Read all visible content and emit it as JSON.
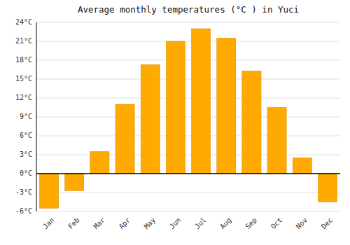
{
  "chart_data": {
    "type": "bar",
    "title": "Average monthly temperatures (°C ) in Yuci",
    "categories": [
      "Jan",
      "Feb",
      "Mar",
      "Apr",
      "May",
      "Jun",
      "Jul",
      "Aug",
      "Sep",
      "Oct",
      "Nov",
      "Dec"
    ],
    "values": [
      -5.5,
      -2.7,
      3.5,
      11.0,
      17.3,
      21.0,
      23.0,
      21.5,
      16.3,
      10.5,
      2.5,
      -4.5
    ],
    "color": "#FFAA00",
    "ylim": [
      -6,
      24
    ],
    "yticks": [
      {
        "value": -6,
        "label": "-6°C"
      },
      {
        "value": -3,
        "label": "-3°C"
      },
      {
        "value": 0,
        "label": "0°C"
      },
      {
        "value": 3,
        "label": "3°C"
      },
      {
        "value": 6,
        "label": "6°C"
      },
      {
        "value": 9,
        "label": "9°C"
      },
      {
        "value": 12,
        "label": "12°C"
      },
      {
        "value": 15,
        "label": "15°C"
      },
      {
        "value": 18,
        "label": "18°C"
      },
      {
        "value": 21,
        "label": "21°C"
      },
      {
        "value": 24,
        "label": "24°C"
      }
    ],
    "grid": true
  }
}
